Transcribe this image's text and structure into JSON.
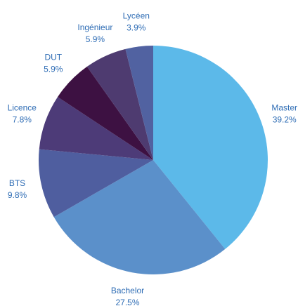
{
  "chart_data": {
    "type": "pie",
    "categories": [
      "Master",
      "Bachelor",
      "BTS",
      "Licence",
      "DUT",
      "Ingénieur",
      "Lycéen"
    ],
    "values": [
      39.2,
      27.5,
      9.8,
      7.8,
      5.9,
      5.9,
      3.9
    ],
    "value_labels": [
      "39.2%",
      "27.5%",
      "9.8%",
      "7.8%",
      "5.9%",
      "5.9%",
      "3.9%"
    ],
    "colors": [
      "#5cb9e9",
      "#5b90ca",
      "#4f5e9f",
      "#4d3b78",
      "#3d1142",
      "#4e3b70",
      "#5162a1"
    ]
  }
}
